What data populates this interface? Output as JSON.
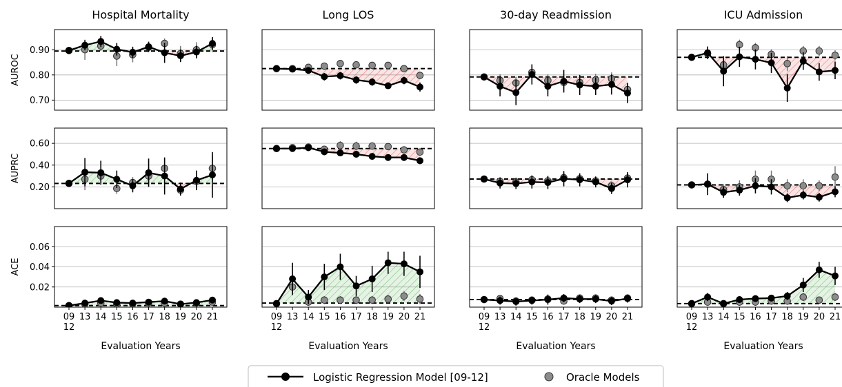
{
  "chart_data": {
    "type": "line",
    "xlabel": "Evaluation Years",
    "x_categories": [
      "09\n12",
      "13",
      "14",
      "15",
      "16",
      "17",
      "18",
      "19",
      "20",
      "21"
    ],
    "rows": [
      {
        "metric": "AUROC",
        "ylim": [
          0.66,
          0.98
        ],
        "yticks": [
          0.7,
          0.8,
          0.9
        ],
        "tick_labels": [
          "0.70",
          "0.80",
          "0.90"
        ]
      },
      {
        "metric": "AUPRC",
        "ylim": [
          0.0,
          0.74
        ],
        "yticks": [
          0.2,
          0.4,
          0.6
        ],
        "tick_labels": [
          "0.20",
          "0.40",
          "0.60"
        ]
      },
      {
        "metric": "ACE",
        "ylim": [
          0.0,
          0.08
        ],
        "yticks": [
          0.02,
          0.04,
          0.06
        ],
        "tick_labels": [
          "0.02",
          "0.04",
          "0.06"
        ]
      }
    ],
    "columns": [
      {
        "task": "Hospital Mortality",
        "AUROC": {
          "baseline": 0.895,
          "lr": [
            0.897,
            0.918,
            0.933,
            0.902,
            0.89,
            0.912,
            0.888,
            0.876,
            0.891,
            0.925
          ],
          "lr_err": [
            0.012,
            0.02,
            0.022,
            0.025,
            0.022,
            0.02,
            0.04,
            0.025,
            0.025,
            0.025
          ],
          "oracle": [
            0.897,
            0.9,
            0.915,
            0.875,
            0.88,
            0.91,
            0.925,
            0.885,
            0.9,
            0.92
          ],
          "oracle_err": [
            0.01,
            0.04,
            0.02,
            0.04,
            0.03,
            0.02,
            0.02,
            0.03,
            0.03,
            0.03
          ]
        },
        "AUPRC": {
          "baseline": 0.232,
          "lr": [
            0.232,
            0.335,
            0.33,
            0.27,
            0.21,
            0.33,
            0.3,
            0.18,
            0.26,
            0.31
          ],
          "lr_err": [
            0.03,
            0.13,
            0.11,
            0.08,
            0.06,
            0.13,
            0.17,
            0.06,
            0.09,
            0.21
          ],
          "oracle": [
            0.232,
            0.27,
            0.3,
            0.185,
            0.24,
            0.3,
            0.37,
            0.17,
            0.25,
            0.37
          ],
          "oracle_err": [
            0.03,
            0.1,
            0.08,
            0.05,
            0.05,
            0.08,
            0.1,
            0.04,
            0.06,
            0.12
          ]
        },
        "ACE": {
          "baseline": 0.0015,
          "lr": [
            0.0015,
            0.004,
            0.0065,
            0.0045,
            0.004,
            0.005,
            0.006,
            0.003,
            0.0045,
            0.007
          ],
          "lr_err": [
            0.001,
            0.003,
            0.003,
            0.003,
            0.003,
            0.003,
            0.003,
            0.003,
            0.003,
            0.003
          ],
          "oracle": [
            0.0015,
            0.003,
            0.004,
            0.003,
            0.003,
            0.004,
            0.004,
            0.003,
            0.004,
            0.005
          ],
          "oracle_err": [
            0.001,
            0.002,
            0.002,
            0.002,
            0.002,
            0.002,
            0.002,
            0.002,
            0.002,
            0.002
          ]
        }
      },
      {
        "task": "Long LOS",
        "AUROC": {
          "baseline": 0.825,
          "lr": [
            0.825,
            0.823,
            0.818,
            0.793,
            0.797,
            0.78,
            0.772,
            0.757,
            0.778,
            0.752
          ],
          "lr_err": [
            0.006,
            0.012,
            0.012,
            0.015,
            0.015,
            0.015,
            0.015,
            0.012,
            0.015,
            0.018
          ],
          "oracle": [
            0.825,
            0.825,
            0.83,
            0.835,
            0.845,
            0.84,
            0.838,
            0.838,
            0.825,
            0.798
          ],
          "oracle_err": [
            0.006,
            0.01,
            0.01,
            0.012,
            0.012,
            0.01,
            0.01,
            0.01,
            0.01,
            0.015
          ]
        },
        "AUPRC": {
          "baseline": 0.552,
          "lr": [
            0.552,
            0.552,
            0.56,
            0.522,
            0.512,
            0.5,
            0.48,
            0.47,
            0.47,
            0.44
          ],
          "lr_err": [
            0.01,
            0.03,
            0.03,
            0.03,
            0.03,
            0.03,
            0.02,
            0.02,
            0.03,
            0.03
          ],
          "oracle": [
            0.552,
            0.56,
            0.565,
            0.545,
            0.58,
            0.575,
            0.575,
            0.57,
            0.54,
            0.52
          ],
          "oracle_err": [
            0.01,
            0.03,
            0.03,
            0.03,
            0.04,
            0.04,
            0.03,
            0.03,
            0.03,
            0.03
          ]
        },
        "ACE": {
          "baseline": 0.004,
          "lr": [
            0.0035,
            0.028,
            0.01,
            0.03,
            0.04,
            0.021,
            0.028,
            0.044,
            0.043,
            0.035
          ],
          "lr_err": [
            0.002,
            0.016,
            0.007,
            0.013,
            0.013,
            0.01,
            0.013,
            0.011,
            0.012,
            0.016
          ],
          "oracle": [
            0.0035,
            0.02,
            0.005,
            0.007,
            0.007,
            0.007,
            0.007,
            0.008,
            0.011,
            0.008
          ],
          "oracle_err": [
            0.002,
            0.006,
            0.003,
            0.004,
            0.004,
            0.004,
            0.004,
            0.004,
            0.005,
            0.005
          ]
        }
      },
      {
        "task": "30-day Readmission",
        "AUROC": {
          "baseline": 0.792,
          "lr": [
            0.792,
            0.755,
            0.73,
            0.802,
            0.755,
            0.775,
            0.76,
            0.755,
            0.762,
            0.728
          ],
          "lr_err": [
            0.012,
            0.04,
            0.05,
            0.04,
            0.04,
            0.045,
            0.04,
            0.035,
            0.04,
            0.04
          ],
          "oracle": [
            0.792,
            0.778,
            0.768,
            0.81,
            0.778,
            0.77,
            0.77,
            0.78,
            0.785,
            0.742
          ],
          "oracle_err": [
            0.01,
            0.025,
            0.025,
            0.025,
            0.025,
            0.025,
            0.025,
            0.025,
            0.025,
            0.025
          ]
        },
        "AUPRC": {
          "baseline": 0.272,
          "lr": [
            0.272,
            0.235,
            0.23,
            0.245,
            0.24,
            0.275,
            0.265,
            0.245,
            0.185,
            0.265
          ],
          "lr_err": [
            0.02,
            0.05,
            0.05,
            0.06,
            0.06,
            0.07,
            0.06,
            0.05,
            0.05,
            0.07
          ],
          "oracle": [
            0.272,
            0.25,
            0.245,
            0.265,
            0.255,
            0.285,
            0.275,
            0.255,
            0.21,
            0.28
          ],
          "oracle_err": [
            0.02,
            0.04,
            0.04,
            0.04,
            0.04,
            0.04,
            0.04,
            0.04,
            0.04,
            0.04
          ]
        },
        "ACE": {
          "baseline": 0.0075,
          "lr": [
            0.0075,
            0.0065,
            0.0055,
            0.0065,
            0.0075,
            0.009,
            0.008,
            0.008,
            0.006,
            0.0085
          ],
          "lr_err": [
            0.002,
            0.004,
            0.004,
            0.004,
            0.005,
            0.004,
            0.004,
            0.004,
            0.004,
            0.004
          ],
          "oracle": [
            0.0075,
            0.0085,
            0.006,
            0.007,
            0.008,
            0.006,
            0.009,
            0.009,
            0.007,
            0.009
          ],
          "oracle_err": [
            0.002,
            0.003,
            0.003,
            0.003,
            0.003,
            0.003,
            0.003,
            0.003,
            0.003,
            0.003
          ]
        }
      },
      {
        "task": "ICU Admission",
        "AUROC": {
          "baseline": 0.87,
          "lr": [
            0.87,
            0.888,
            0.815,
            0.872,
            0.862,
            0.848,
            0.748,
            0.855,
            0.812,
            0.818
          ],
          "lr_err": [
            0.012,
            0.025,
            0.06,
            0.04,
            0.04,
            0.04,
            0.055,
            0.035,
            0.035,
            0.035
          ],
          "oracle": [
            0.87,
            0.885,
            0.84,
            0.92,
            0.908,
            0.882,
            0.845,
            0.895,
            0.895,
            0.878
          ],
          "oracle_err": [
            0.01,
            0.02,
            0.03,
            0.02,
            0.02,
            0.02,
            0.03,
            0.02,
            0.02,
            0.02
          ]
        },
        "AUPRC": {
          "baseline": 0.218,
          "lr": [
            0.218,
            0.225,
            0.15,
            0.17,
            0.21,
            0.2,
            0.1,
            0.125,
            0.105,
            0.155
          ],
          "lr_err": [
            0.03,
            0.1,
            0.05,
            0.05,
            0.07,
            0.07,
            0.04,
            0.04,
            0.04,
            0.05
          ],
          "oracle": [
            0.218,
            0.225,
            0.175,
            0.2,
            0.27,
            0.27,
            0.21,
            0.21,
            0.21,
            0.29
          ],
          "oracle_err": [
            0.03,
            0.06,
            0.05,
            0.06,
            0.08,
            0.08,
            0.06,
            0.06,
            0.05,
            0.1
          ]
        },
        "ACE": {
          "baseline": 0.0035,
          "lr": [
            0.0035,
            0.01,
            0.0035,
            0.0075,
            0.0085,
            0.009,
            0.011,
            0.022,
            0.037,
            0.031
          ],
          "lr_err": [
            0.001,
            0.004,
            0.002,
            0.003,
            0.003,
            0.003,
            0.004,
            0.007,
            0.008,
            0.009
          ],
          "oracle": [
            0.0035,
            0.005,
            0.0035,
            0.005,
            0.005,
            0.006,
            0.006,
            0.01,
            0.007,
            0.01
          ],
          "oracle_err": [
            0.001,
            0.003,
            0.002,
            0.003,
            0.003,
            0.003,
            0.003,
            0.004,
            0.003,
            0.004
          ]
        }
      }
    ],
    "legend": {
      "position": "bottom-center",
      "entries": [
        "Logistic Regression Model [09-12]",
        "Oracle Models"
      ]
    },
    "colors": {
      "line": "#000000",
      "oracle_marker": "#8c8c8c",
      "baseline": "#000000",
      "improve_fill": "#2ca02c",
      "degrade_fill": "#d62728",
      "grid": "#b0b0b0"
    },
    "grid": "horizontal"
  }
}
